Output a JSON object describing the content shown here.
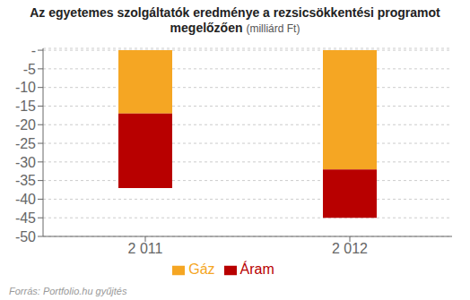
{
  "chart_data": {
    "type": "bar",
    "title": "Az egyetemes szolgáltatók eredménye a rezsicsökkentési programot megelőzően",
    "subtitle": "(milliárd Ft)",
    "annotations": [
      "Forrás: Portfolio.hu gyűjtés"
    ],
    "categories": [
      "2 011",
      "2 012"
    ],
    "series": [
      {
        "name": "Gáz",
        "color": "#F5A623",
        "values": [
          -17.0,
          -32.0
        ]
      },
      {
        "name": "Áram",
        "color": "#B80000",
        "values": [
          -20.0,
          -13.0
        ]
      }
    ],
    "stacked": true,
    "ylim": [
      -50,
      0.5
    ],
    "yticks": [
      {
        "value": 0,
        "label": "-"
      },
      -5,
      -10,
      -15,
      -20,
      -25,
      -30,
      -35,
      -40,
      -45,
      -50
    ],
    "grid": true,
    "legend": "bottom"
  }
}
